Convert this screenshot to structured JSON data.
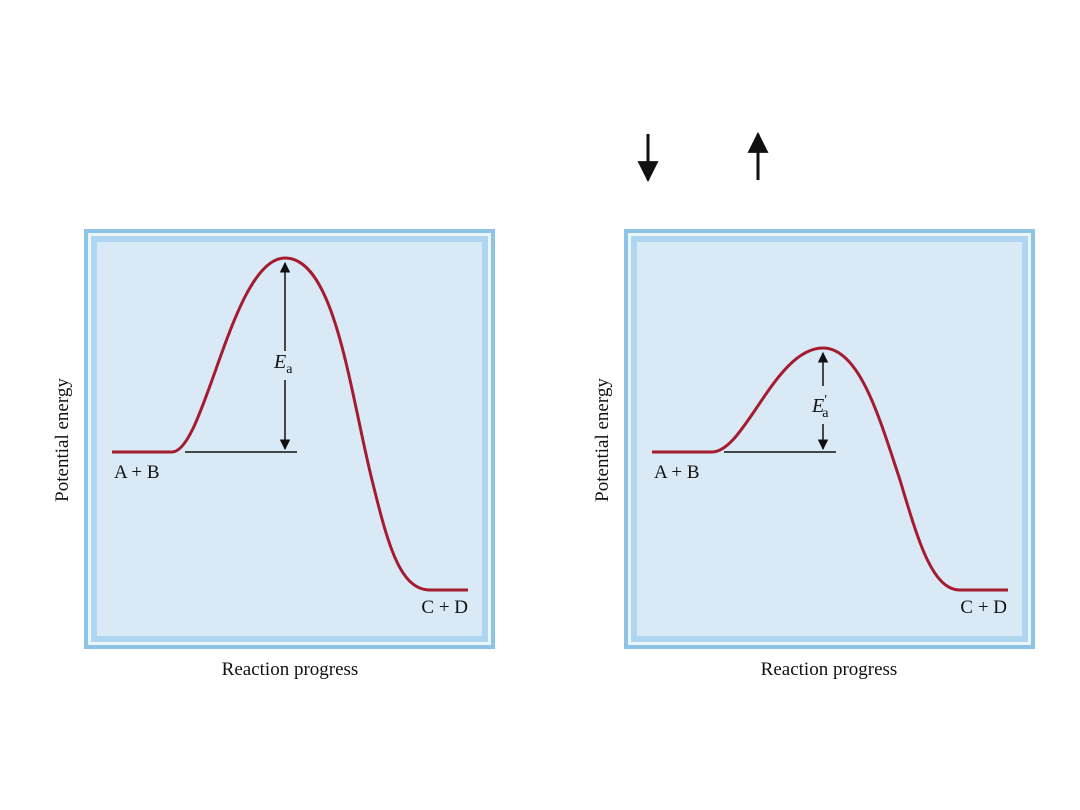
{
  "colors": {
    "panel_fill": "#d9eaf6",
    "frame_outer": "#8cc3e6",
    "frame_inner": "#aed6f0",
    "frame_light": "#eaf5fc",
    "curve": "#a51c30",
    "ink": "#111111"
  },
  "top_arrows": [
    {
      "name": "down-arrow-icon",
      "direction": "down"
    },
    {
      "name": "up-arrow-icon",
      "direction": "up"
    }
  ],
  "panels": [
    {
      "id": "left",
      "ylabel": "Potential energy",
      "xlabel": "Reaction progress",
      "reactants_label": "A + B",
      "products_label": "C + D",
      "ea_symbol": "E",
      "ea_subscript": "a",
      "ea_prime": false
    },
    {
      "id": "right",
      "ylabel": "Potential energy",
      "xlabel": "Reaction progress",
      "reactants_label": "A + B",
      "products_label": "C + D",
      "ea_symbol": "E",
      "ea_subscript": "a",
      "ea_prime": true
    }
  ]
}
